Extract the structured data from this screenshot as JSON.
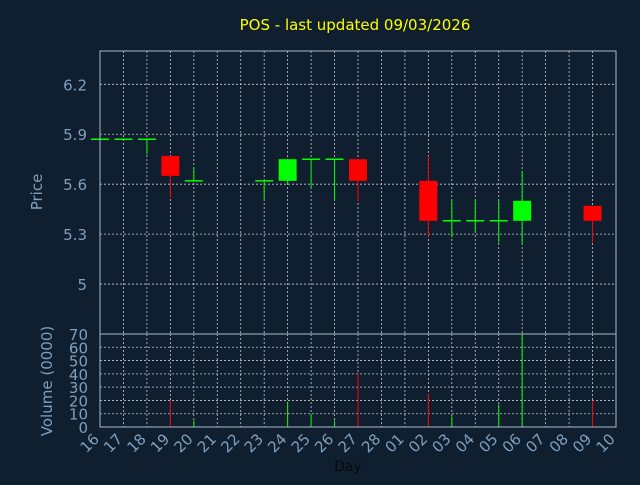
{
  "chart_data": {
    "type": "candlestick",
    "title": "POS - last updated 09/03/2026",
    "xlabel": "Day",
    "colors": {
      "background": "#0f1f30",
      "axis_text": "#7f9fbf",
      "title": "#ffff00",
      "up": "#00ff00",
      "down": "#ff0000",
      "grid": "#c8c8c8"
    },
    "x": [
      "16",
      "17",
      "18",
      "19",
      "20",
      "21",
      "22",
      "23",
      "24",
      "25",
      "26",
      "27",
      "28",
      "01",
      "02",
      "03",
      "04",
      "05",
      "06",
      "07",
      "08",
      "09",
      "10"
    ],
    "price": {
      "ylabel": "Price",
      "ylim": [
        4.7,
        6.4
      ],
      "ticks": [
        5,
        5.3,
        5.6,
        5.9,
        6.2
      ],
      "tick_labels": [
        "5",
        "5.3",
        "5.6",
        "5.9",
        "6.2"
      ],
      "grid": true
    },
    "volume": {
      "ylabel": "Volume (0000)",
      "ylim": [
        0,
        70
      ],
      "ticks": [
        0,
        10,
        20,
        30,
        40,
        50,
        60,
        70
      ],
      "tick_labels": [
        "0",
        "10",
        "20",
        "30",
        "40",
        "50",
        "60",
        "70"
      ],
      "grid": true
    },
    "candles": [
      {
        "day": "16",
        "open": 5.87,
        "close": 5.87,
        "high": 5.87,
        "low": 5.87,
        "volume": 0
      },
      {
        "day": "17",
        "open": 5.87,
        "close": 5.87,
        "high": 5.87,
        "low": 5.87,
        "volume": 0
      },
      {
        "day": "18",
        "open": 5.87,
        "close": 5.87,
        "high": 5.87,
        "low": 5.78,
        "volume": 0
      },
      {
        "day": "19",
        "open": 5.77,
        "close": 5.65,
        "high": 5.77,
        "low": 5.52,
        "volume": 20
      },
      {
        "day": "20",
        "open": 5.62,
        "close": 5.62,
        "high": 5.7,
        "low": 5.62,
        "volume": 5
      },
      {
        "day": "23",
        "open": 5.62,
        "close": 5.62,
        "high": 5.62,
        "low": 5.51,
        "volume": 0
      },
      {
        "day": "24",
        "open": 5.62,
        "close": 5.75,
        "high": 5.75,
        "low": 5.6,
        "volume": 19
      },
      {
        "day": "25",
        "open": 5.75,
        "close": 5.75,
        "high": 5.75,
        "low": 5.58,
        "volume": 10
      },
      {
        "day": "26",
        "open": 5.75,
        "close": 5.75,
        "high": 5.75,
        "low": 5.5,
        "volume": 5
      },
      {
        "day": "27",
        "open": 5.75,
        "close": 5.62,
        "high": 5.75,
        "low": 5.5,
        "volume": 41
      },
      {
        "day": "02",
        "open": 5.62,
        "close": 5.38,
        "high": 5.77,
        "low": 5.28,
        "volume": 25
      },
      {
        "day": "03",
        "open": 5.38,
        "close": 5.38,
        "high": 5.5,
        "low": 5.28,
        "volume": 8
      },
      {
        "day": "04",
        "open": 5.38,
        "close": 5.38,
        "high": 5.5,
        "low": 5.31,
        "volume": 0
      },
      {
        "day": "05",
        "open": 5.38,
        "close": 5.38,
        "high": 5.5,
        "low": 5.25,
        "volume": 17
      },
      {
        "day": "06",
        "open": 5.38,
        "close": 5.5,
        "high": 5.68,
        "low": 5.24,
        "volume": 70
      },
      {
        "day": "09",
        "open": 5.47,
        "close": 5.38,
        "high": 5.47,
        "low": 5.25,
        "volume": 20
      }
    ]
  }
}
